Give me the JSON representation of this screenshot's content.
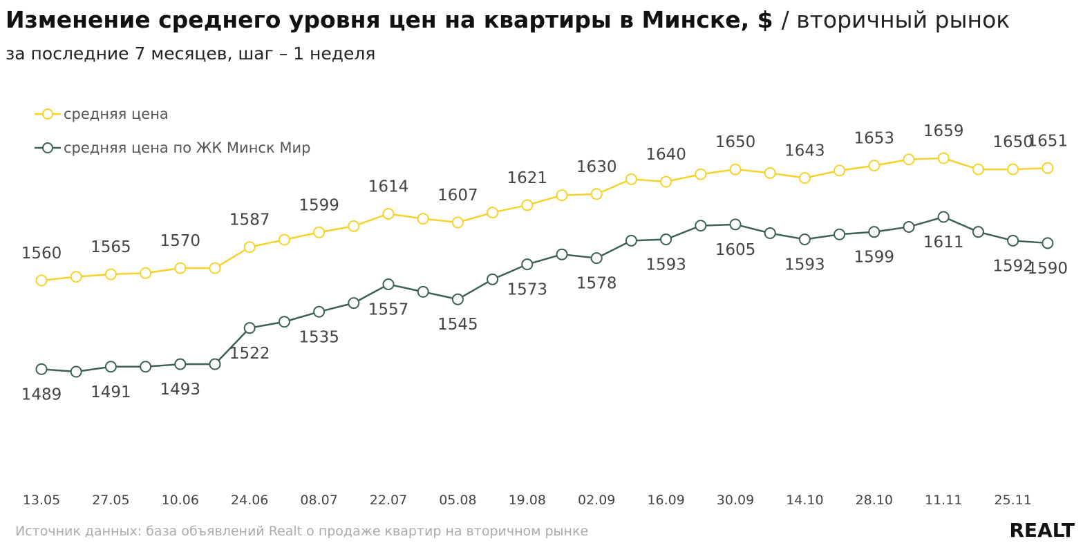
{
  "chart_data": {
    "type": "line",
    "title": "Изменение среднего уровня цен на квартиры в Минске, $",
    "title_suffix": "/ вторичный рынок",
    "subtitle": "за последние 7 месяцев, шаг – 1 неделя",
    "source": "Источник данных: база объявлений Realt о продаже квартир на вторичном рынке",
    "logo": "REALT",
    "categories": [
      "13.05",
      null,
      "27.05",
      null,
      "10.06",
      null,
      "24.06",
      null,
      "08.07",
      null,
      "22.07",
      null,
      "05.08",
      null,
      "19.08",
      null,
      "02.09",
      null,
      "16.09",
      null,
      "30.09",
      null,
      "14.10",
      null,
      "28.10",
      null,
      "11.11",
      null,
      "25.11",
      null
    ],
    "series": [
      {
        "name": "средняя цена",
        "color": "#f7d22c",
        "values": [
          1560,
          1563,
          1565,
          1566,
          1570,
          1570,
          1587,
          1593,
          1599,
          1604,
          1614,
          1610,
          1607,
          1615,
          1621,
          1629,
          1630,
          1642,
          1640,
          1646,
          1650,
          1647,
          1643,
          1649,
          1653,
          1658,
          1659,
          1650,
          1650,
          1651
        ],
        "value_labels": [
          "1560",
          null,
          "1565",
          null,
          "1570",
          null,
          "1587",
          null,
          "1599",
          null,
          "1614",
          null,
          "1607",
          null,
          "1621",
          null,
          "1630",
          null,
          "1640",
          null,
          "1650",
          null,
          "1643",
          null,
          "1653",
          null,
          "1659",
          null,
          "1650",
          "1651"
        ]
      },
      {
        "name": "средняя цена по ЖК Минск Мир",
        "color": "#3d6150",
        "values": [
          1489,
          1487,
          1491,
          1491,
          1493,
          1493,
          1522,
          1527,
          1535,
          1542,
          1557,
          1551,
          1545,
          1561,
          1573,
          1581,
          1578,
          1592,
          1593,
          1604,
          1605,
          1598,
          1593,
          1597,
          1599,
          1603,
          1611,
          1599,
          1592,
          1590
        ],
        "value_labels": [
          "1489",
          null,
          "1491",
          null,
          "1493",
          null,
          "1522",
          null,
          "1535",
          null,
          "1557",
          null,
          "1545",
          null,
          "1573",
          null,
          "1578",
          null,
          "1593",
          null,
          "1605",
          null,
          "1593",
          null,
          "1599",
          null,
          "1611",
          null,
          "1592",
          "1590"
        ]
      }
    ]
  }
}
